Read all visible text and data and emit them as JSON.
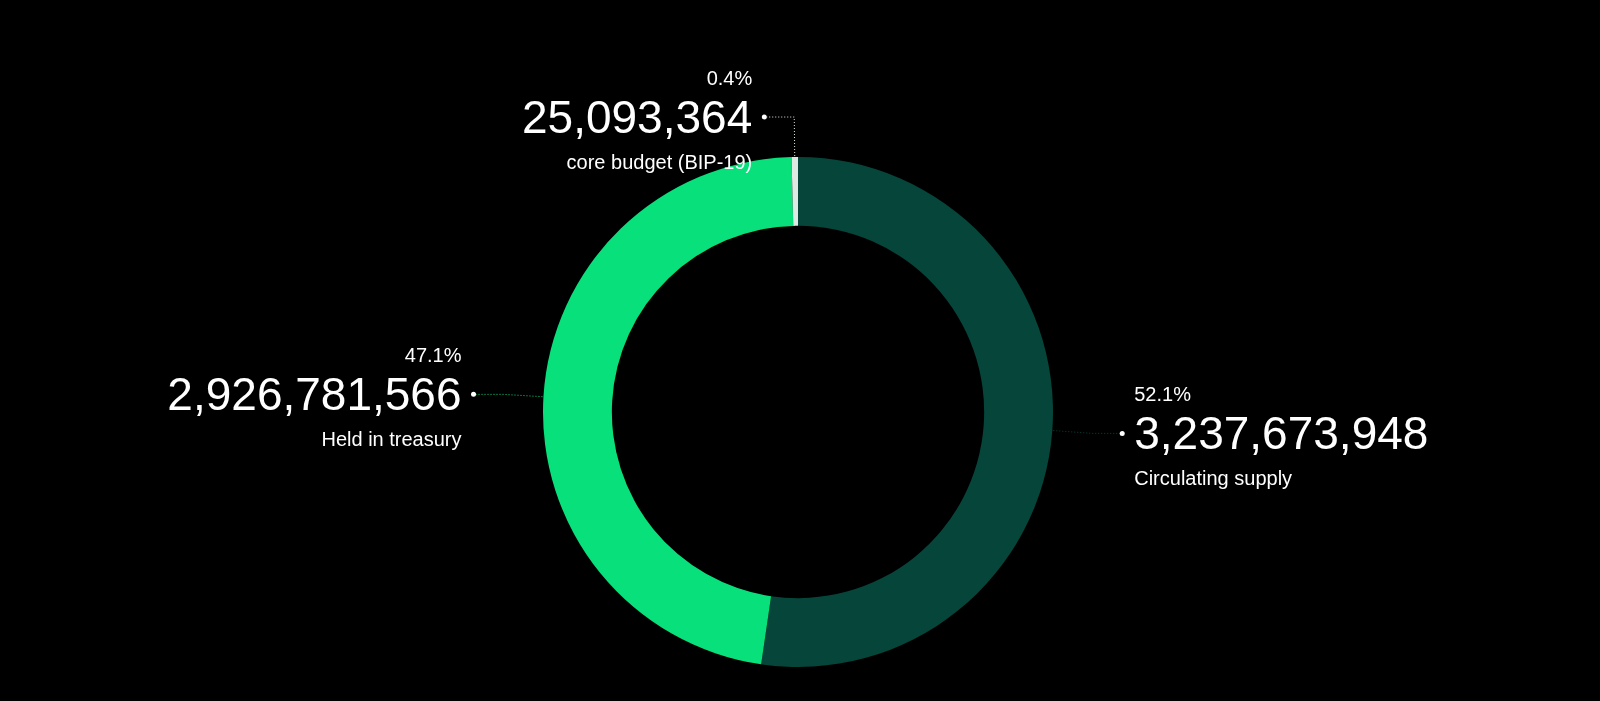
{
  "chart_data": {
    "type": "donut",
    "categories": [
      "Circulating supply",
      "Held in treasury",
      "core budget (BIP-19)"
    ],
    "values": [
      3237673948,
      2926781566,
      25093364
    ],
    "colors": [
      "#06453a",
      "#08e07b",
      "#dfe9e4"
    ],
    "value_labels": [
      "3,237,673,948",
      "2,926,781,566",
      "25,093,364"
    ],
    "annotations": [
      "52.1%",
      "47.1%",
      "0.4%"
    ],
    "legend": false
  }
}
